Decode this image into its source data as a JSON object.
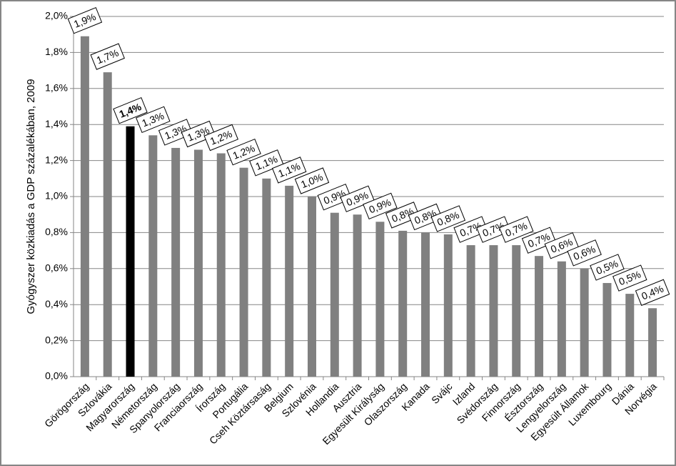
{
  "chart_data": {
    "type": "bar",
    "y_label": "Gyógyszer közkiadás a GDP százalékában, 2009",
    "categories": [
      "Görögország",
      "Szlovákia",
      "Magyarország",
      "Németország",
      "Spanyolország",
      "Franciaország",
      "Írország",
      "Portugália",
      "Cseh Köztársaság",
      "Belgium",
      "Szlovénia",
      "Hollandia",
      "Ausztria",
      "Egyesült Királyság",
      "Olaszország",
      "Kanada",
      "Svájc",
      "Izland",
      "Svédország",
      "Finnország",
      "Észtország",
      "Lengyelország",
      "Egyesült Államok",
      "Luxembourg",
      "Dánia",
      "Norvégia"
    ],
    "values": [
      1.89,
      1.69,
      1.39,
      1.34,
      1.27,
      1.26,
      1.24,
      1.16,
      1.1,
      1.06,
      1.0,
      0.91,
      0.9,
      0.86,
      0.81,
      0.8,
      0.79,
      0.73,
      0.73,
      0.73,
      0.67,
      0.64,
      0.6,
      0.52,
      0.46,
      0.38
    ],
    "value_labels": [
      "1,9%",
      "1,7%",
      "1,4%",
      "1,3%",
      "1,3%",
      "1,3%",
      "1,2%",
      "1,2%",
      "1,1%",
      "1,1%",
      "1,0%",
      "0,9%",
      "0,9%",
      "0,9%",
      "0,8%",
      "0,8%",
      "0,8%",
      "0,7%",
      "0,7%",
      "0,7%",
      "0,7%",
      "0,6%",
      "0,6%",
      "0,5%",
      "0,5%",
      "0,4%"
    ],
    "colors": [
      "#808080",
      "#808080",
      "#000000",
      "#808080",
      "#808080",
      "#808080",
      "#808080",
      "#808080",
      "#808080",
      "#808080",
      "#808080",
      "#808080",
      "#808080",
      "#808080",
      "#808080",
      "#808080",
      "#808080",
      "#808080",
      "#808080",
      "#808080",
      "#808080",
      "#808080",
      "#808080",
      "#808080",
      "#808080",
      "#808080"
    ],
    "ylim": [
      0,
      2.0
    ],
    "yticks": [
      {
        "value": 0,
        "label": "0,0%"
      },
      {
        "value": 0.2,
        "label": "0,2%"
      },
      {
        "value": 0.4,
        "label": "0,4%"
      },
      {
        "value": 0.6,
        "label": "0,6%"
      },
      {
        "value": 0.8,
        "label": "0,8%"
      },
      {
        "value": 1.0,
        "label": "1,0%"
      },
      {
        "value": 1.2,
        "label": "1,2%"
      },
      {
        "value": 1.4,
        "label": "1,4%"
      },
      {
        "value": 1.6,
        "label": "1,6%"
      },
      {
        "value": 1.8,
        "label": "1,8%"
      },
      {
        "value": 2.0,
        "label": "2,0%"
      }
    ],
    "grid": true
  }
}
